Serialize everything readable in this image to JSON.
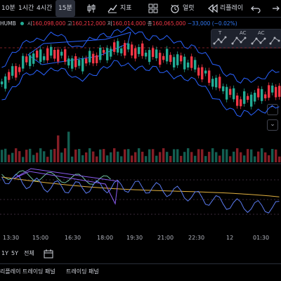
{
  "toolbar": {
    "timeframes": [
      "10분",
      "1시간",
      "4시간",
      "15분"
    ],
    "active_timeframe": "15분",
    "indicator_label": "지표",
    "alert_label": "얼럿",
    "replay_label": "리플레이",
    "icons": [
      "candles-icon",
      "chart-indicator-icon",
      "layout-grid-icon",
      "alarm-icon",
      "replay-icon",
      "undo-icon",
      "redo-icon"
    ]
  },
  "legend": {
    "symbol": "HUMB",
    "open_label": "시",
    "open_value": "160,098,000",
    "high_label": "고",
    "high_value": "160,212,000",
    "low_label": "저",
    "low_value": "160,014,000",
    "close_label": "종",
    "close_value": "160,065,000",
    "change": "−33,000 (−0.02%)",
    "status_color": "#22ab94"
  },
  "indicator_tools": [
    "T",
    "AC",
    "AC"
  ],
  "time_axis": [
    "13:30",
    "15:00",
    "16:30",
    "18:00",
    "19:30",
    "21:00",
    "22:30",
    "12",
    "01:30"
  ],
  "range_bar": {
    "options": [
      "1Y",
      "5Y",
      "전체"
    ],
    "calendar_icon": "calendar-range-icon"
  },
  "bottom_bar": {
    "tab1": "리플레이 트레이딩 패널",
    "tab2": "트레이딩 패널"
  },
  "colors": {
    "up": "#22ab94",
    "down": "#f23645",
    "band": "#2962ff",
    "osc_fast": "#5b7bf0",
    "osc_slow": "#e0b040",
    "osc_extra": "#7ad3b0"
  },
  "chart_data": {
    "type": "candlestick",
    "series": [
      {
        "name": "price",
        "unit": "KRW"
      }
    ],
    "x_ticks": [
      "13:30",
      "15:00",
      "16:30",
      "18:00",
      "19:30",
      "21:00",
      "22:30",
      "12",
      "01:30"
    ]
  }
}
